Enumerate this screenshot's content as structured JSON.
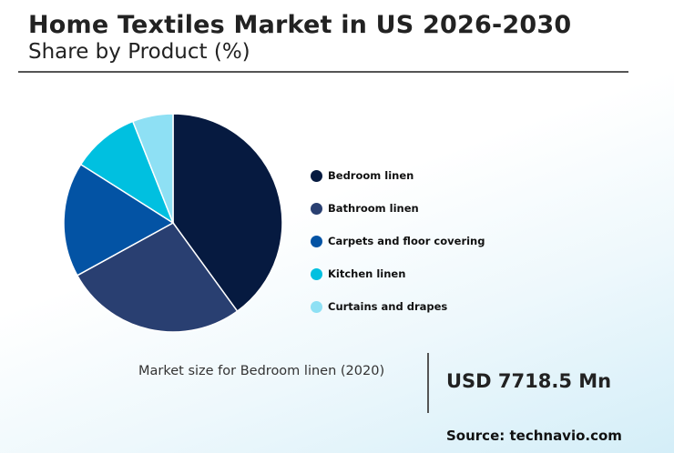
{
  "header": {
    "title": "Home Textiles Market in US 2026-2030",
    "subtitle": "Share by Product (%)"
  },
  "chart_data": {
    "type": "pie",
    "title": "Home Textiles Market in US 2026-2030",
    "subtitle": "Share by Product (%)",
    "legend_position": "right",
    "categories": [
      "Bedroom linen",
      "Bathroom linen",
      "Carpets and floor covering",
      "Kitchen linen",
      "Curtains and drapes"
    ],
    "values": [
      40,
      27,
      17,
      10,
      6
    ],
    "colors": [
      "#061a40",
      "#293f71",
      "#0353a4",
      "#00c0e0",
      "#8ee0f4"
    ],
    "slice_border_color": "#ffffff"
  },
  "callout": {
    "label": "Market size for Bedroom linen (2020)",
    "value": "USD 7718.5 Mn"
  },
  "footer": {
    "source": "Source: technavio.com"
  }
}
